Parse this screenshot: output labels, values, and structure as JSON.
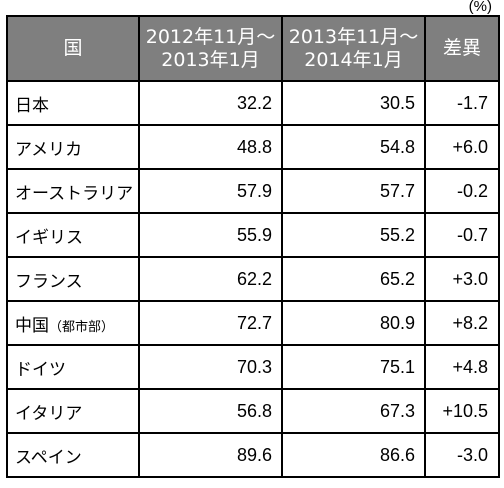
{
  "unit": "(%)",
  "header": {
    "country": "国",
    "period1_line1": "2012年11月～",
    "period1_line2": "2013年1月",
    "period2_line1": "2013年11月～",
    "period2_line2": "2014年1月",
    "difference": "差異"
  },
  "rows": [
    {
      "country": "日本",
      "note": "",
      "period1": "32.2",
      "period2": "30.5",
      "difference": "-1.7"
    },
    {
      "country": "アメリカ",
      "note": "",
      "period1": "48.8",
      "period2": "54.8",
      "difference": "+6.0"
    },
    {
      "country": "オーストラリア",
      "note": "",
      "period1": "57.9",
      "period2": "57.7",
      "difference": "-0.2"
    },
    {
      "country": "イギリス",
      "note": "",
      "period1": "55.9",
      "period2": "55.2",
      "difference": "-0.7"
    },
    {
      "country": "フランス",
      "note": "",
      "period1": "62.2",
      "period2": "65.2",
      "difference": "+3.0"
    },
    {
      "country": "中国",
      "note": "（都市部）",
      "period1": "72.7",
      "period2": "80.9",
      "difference": "+8.2"
    },
    {
      "country": "ドイツ",
      "note": "",
      "period1": "70.3",
      "period2": "75.1",
      "difference": "+4.8"
    },
    {
      "country": "イタリア",
      "note": "",
      "period1": "56.8",
      "period2": "67.3",
      "difference": "+10.5"
    },
    {
      "country": "スペイン",
      "note": "",
      "period1": "89.6",
      "period2": "86.6",
      "difference": "-3.0"
    }
  ],
  "colors": {
    "header_background": "#7f7f7f",
    "header_text": "#ffffff",
    "border": "#000000"
  }
}
